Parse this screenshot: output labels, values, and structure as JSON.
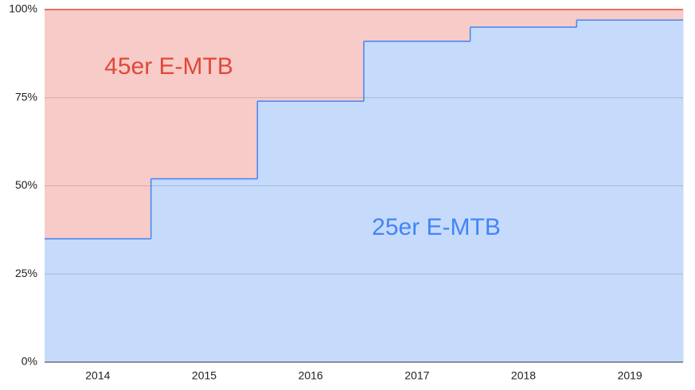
{
  "chart_data": {
    "type": "stepped-area",
    "categories": [
      "2014",
      "2015",
      "2016",
      "2017",
      "2018",
      "2019"
    ],
    "series": [
      {
        "name": "25er E-MTB",
        "color": "#4285f4",
        "fill": "#c6dafc",
        "values": [
          35,
          52,
          74,
          91,
          95,
          97
        ]
      },
      {
        "name": "45er E-MTB",
        "color": "#e0483a",
        "fill": "#f7cbc7",
        "values": [
          65,
          48,
          26,
          9,
          5,
          3
        ]
      }
    ],
    "ylim": [
      0,
      100
    ],
    "yticks": [
      {
        "value": 0,
        "label": "0%"
      },
      {
        "value": 25,
        "label": "25%"
      },
      {
        "value": 50,
        "label": "50%"
      },
      {
        "value": 75,
        "label": "75%"
      },
      {
        "value": 100,
        "label": "100%"
      }
    ],
    "grid": true
  }
}
